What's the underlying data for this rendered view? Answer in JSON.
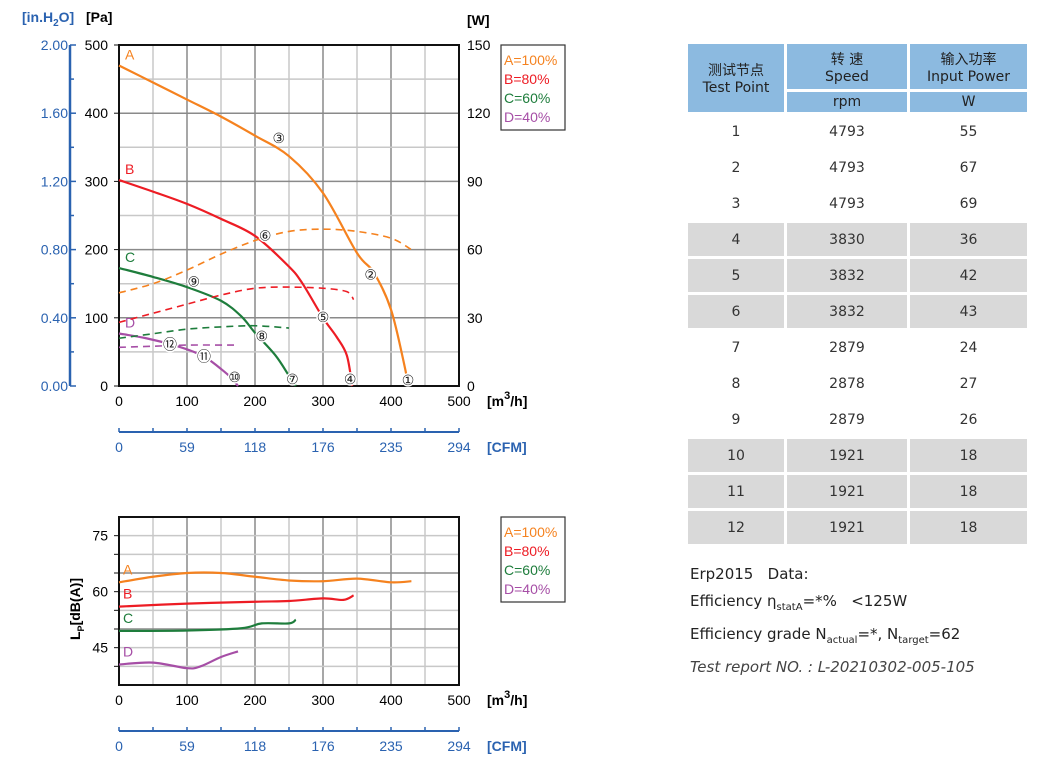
{
  "chart_data": [
    {
      "type": "line",
      "title": "",
      "xlabel": "[m3/h]",
      "xlabel_main": "[m",
      "xlabel_sup": "3",
      "xlabel_tail": "/h]",
      "xlim": [
        0,
        500
      ],
      "x_ticks": [
        "0",
        "100",
        "200",
        "300",
        "400",
        "500"
      ],
      "x2_label": "[CFM]",
      "x2_ticks": [
        "0",
        "59",
        "118",
        "176",
        "235",
        "294"
      ],
      "ylabel": "[Pa]",
      "ylim": [
        0,
        500
      ],
      "y_ticks": [
        "0",
        "100",
        "200",
        "300",
        "400",
        "500"
      ],
      "y_left2_label_main": "[in.H",
      "y_left2_label_sub": "2",
      "y_left2_label_tail": "O]",
      "y_left2_ticks": [
        "0.00",
        "0.40",
        "0.80",
        "1.20",
        "1.60",
        "2.00"
      ],
      "y_right_label": "[W]",
      "y_right_lim": [
        0,
        150
      ],
      "y_right_ticks": [
        "0",
        "30",
        "60",
        "90",
        "120",
        "150"
      ],
      "grid": true,
      "legend_position": "right-top",
      "legend": [
        "A=100%",
        "B=80%",
        "C=60%",
        "D=40%"
      ],
      "series": [
        {
          "name": "A",
          "color": "#f5821f",
          "kind": "pressure",
          "x": [
            0,
            50,
            100,
            150,
            200,
            250,
            300,
            350,
            375,
            400,
            420,
            425
          ],
          "y": [
            470,
            445,
            420,
            395,
            367,
            337,
            283,
            195,
            166,
            112,
            29,
            0
          ]
        },
        {
          "name": "B",
          "color": "#ed1c24",
          "kind": "pressure",
          "x": [
            0,
            50,
            100,
            150,
            200,
            250,
            270,
            300,
            320,
            335,
            343
          ],
          "y": [
            302,
            285,
            267,
            245,
            220,
            175,
            150,
            100,
            72,
            45,
            0
          ]
        },
        {
          "name": "C",
          "color": "#1e7d3c",
          "kind": "pressure",
          "x": [
            0,
            50,
            100,
            150,
            180,
            200,
            230,
            250,
            260
          ],
          "y": [
            173,
            160,
            145,
            125,
            102,
            78,
            45,
            15,
            0
          ]
        },
        {
          "name": "D",
          "color": "#a64ea6",
          "kind": "pressure",
          "x": [
            0,
            40,
            80,
            110,
            130,
            150,
            165,
            175
          ],
          "y": [
            77,
            70,
            60,
            50,
            40,
            25,
            12,
            0
          ]
        },
        {
          "name": "A",
          "color": "#f5821f",
          "kind": "power",
          "x": [
            0,
            50,
            100,
            150,
            200,
            250,
            300,
            350,
            400,
            430
          ],
          "y": [
            41,
            45,
            51,
            58,
            64,
            68,
            69,
            68,
            65,
            60
          ]
        },
        {
          "name": "B",
          "color": "#ed1c24",
          "kind": "power",
          "x": [
            0,
            50,
            100,
            150,
            200,
            250,
            300,
            335,
            345
          ],
          "y": [
            28,
            32,
            36,
            40,
            43,
            43.5,
            43,
            41.5,
            38
          ]
        },
        {
          "name": "C",
          "color": "#1e7d3c",
          "kind": "power",
          "x": [
            0,
            50,
            100,
            150,
            200,
            250
          ],
          "y": [
            21,
            23,
            25,
            26,
            26.5,
            25.5
          ]
        },
        {
          "name": "D",
          "color": "#a64ea6",
          "kind": "power",
          "x": [
            0,
            50,
            100,
            170
          ],
          "y": [
            17,
            17.5,
            18,
            18
          ]
        }
      ],
      "test_points": [
        {
          "label": "①",
          "x": 425,
          "y": 10
        },
        {
          "label": "②",
          "x": 370,
          "y": 165
        },
        {
          "label": "③",
          "x": 235,
          "y": 365
        },
        {
          "label": "④",
          "x": 340,
          "y": 12
        },
        {
          "label": "⑤",
          "x": 300,
          "y": 103
        },
        {
          "label": "⑥",
          "x": 215,
          "y": 222
        },
        {
          "label": "⑦",
          "x": 255,
          "y": 12
        },
        {
          "label": "⑧",
          "x": 210,
          "y": 75
        },
        {
          "label": "⑨",
          "x": 110,
          "y": 155
        },
        {
          "label": "⑩",
          "x": 170,
          "y": 15
        },
        {
          "label": "⑪",
          "x": 125,
          "y": 45
        },
        {
          "label": "⑫",
          "x": 75,
          "y": 62
        }
      ]
    },
    {
      "type": "line",
      "title": "",
      "xlabel_main": "[m",
      "xlabel_sup": "3",
      "xlabel_tail": "/h]",
      "xlim": [
        0,
        500
      ],
      "x_ticks": [
        "0",
        "100",
        "200",
        "300",
        "400",
        "500"
      ],
      "x2_label": "[CFM]",
      "x2_ticks": [
        "0",
        "59",
        "118",
        "176",
        "235",
        "294"
      ],
      "ylabel_main": "L",
      "ylabel_sub": "P",
      "ylabel_tail": "[dB(A)]",
      "ylim": [
        35,
        80
      ],
      "y_ticks": [
        "45",
        "60",
        "75"
      ],
      "grid": true,
      "legend_position": "right-top",
      "legend": [
        "A=100%",
        "B=80%",
        "C=60%",
        "D=40%"
      ],
      "series": [
        {
          "name": "A",
          "color": "#f5821f",
          "x": [
            0,
            50,
            100,
            150,
            200,
            250,
            300,
            350,
            400,
            430
          ],
          "y": [
            62.5,
            64,
            65,
            65,
            64,
            63,
            62.8,
            63.5,
            62.5,
            62.8
          ]
        },
        {
          "name": "B",
          "color": "#ed1c24",
          "x": [
            0,
            100,
            200,
            250,
            300,
            330,
            345
          ],
          "y": [
            56,
            56.8,
            57.3,
            57.5,
            58.2,
            57.8,
            59
          ]
        },
        {
          "name": "C",
          "color": "#1e7d3c",
          "x": [
            0,
            100,
            180,
            210,
            250,
            260
          ],
          "y": [
            49.5,
            49.6,
            50.2,
            51.5,
            51.5,
            52.5
          ]
        },
        {
          "name": "D",
          "color": "#a64ea6",
          "x": [
            0,
            50,
            100,
            120,
            150,
            175
          ],
          "y": [
            40.5,
            41,
            39.5,
            40,
            42.5,
            44
          ]
        }
      ]
    }
  ],
  "table": {
    "header": {
      "col1_cn": "测试节点",
      "col1_en": "Test Point",
      "col2_cn": "转 速",
      "col2_en": "Speed",
      "col2_unit": "rpm",
      "col3_cn": "输入功率",
      "col3_en": "Input Power",
      "col3_unit": "W"
    },
    "rows": [
      {
        "point": "1",
        "speed": "4793",
        "power": "55"
      },
      {
        "point": "2",
        "speed": "4793",
        "power": "67"
      },
      {
        "point": "3",
        "speed": "4793",
        "power": "69"
      },
      {
        "point": "4",
        "speed": "3830",
        "power": "36"
      },
      {
        "point": "5",
        "speed": "3832",
        "power": "42"
      },
      {
        "point": "6",
        "speed": "3832",
        "power": "43"
      },
      {
        "point": "7",
        "speed": "2879",
        "power": "24"
      },
      {
        "point": "8",
        "speed": "2878",
        "power": "27"
      },
      {
        "point": "9",
        "speed": "2879",
        "power": "26"
      },
      {
        "point": "10",
        "speed": "1921",
        "power": "18"
      },
      {
        "point": "11",
        "speed": "1921",
        "power": "18"
      },
      {
        "point": "12",
        "speed": "1921",
        "power": "18"
      }
    ]
  },
  "erp": {
    "title": "Erp2015   Data:",
    "eff_label": "Efficiency η",
    "eff_sub": "statA",
    "eff_value": "=*%   <125W",
    "grade_label": "Efficiency grade N",
    "grade_sub1": "actual",
    "grade_mid": "=*, N",
    "grade_sub2": "target",
    "grade_value": "=62",
    "report": "Test report NO. : L-20210302-005-105"
  }
}
